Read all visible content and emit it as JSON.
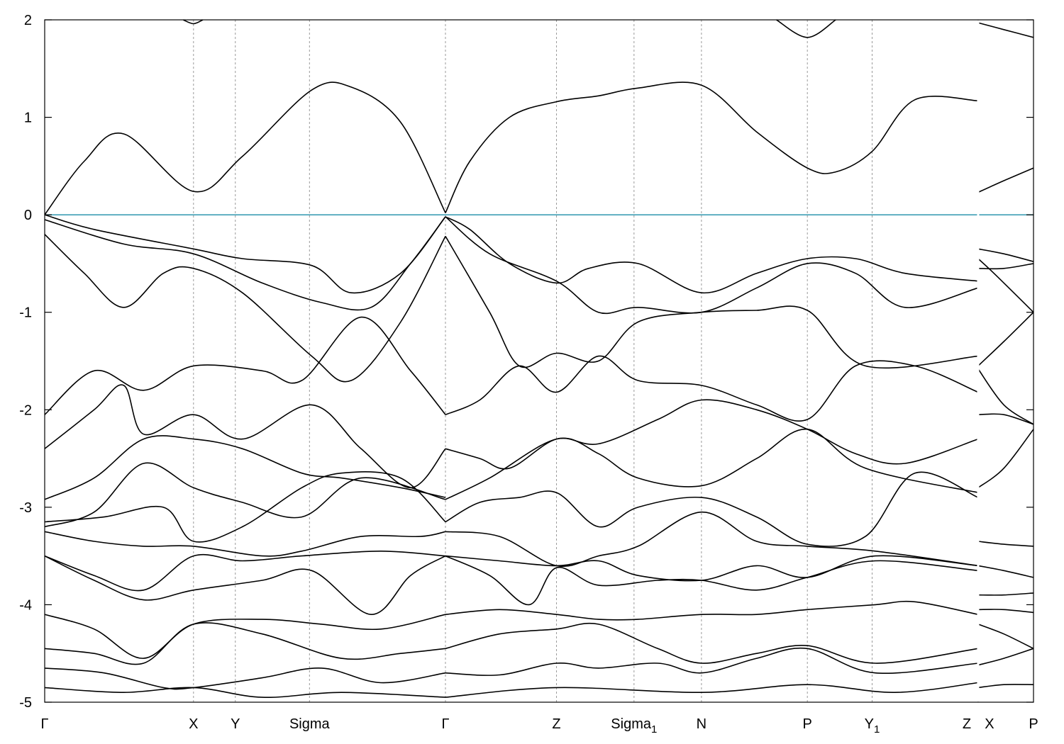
{
  "chart_data": {
    "type": "line",
    "title": "",
    "xlabel": "",
    "ylabel": "",
    "ylim": [
      -5,
      2
    ],
    "xlim": [
      0,
      1
    ],
    "yticks": [
      -5,
      -4,
      -3,
      -2,
      -1,
      0,
      1,
      2
    ],
    "grid": "vertical dashed lines at high-symmetry points",
    "legend": "none",
    "colors": {
      "bands": "#000000",
      "fermi_level": "#3f9fb5",
      "gridlines": "#9a9a9a"
    },
    "fermi_level": 0,
    "break_at": 0.944,
    "high_symmetry_points": [
      {
        "label": "Γ",
        "sub": "",
        "x": 0.0
      },
      {
        "label": "X",
        "sub": "",
        "x": 0.1505
      },
      {
        "label": "Y",
        "sub": "",
        "x": 0.1928
      },
      {
        "label": "Sigma",
        "sub": "",
        "x": 0.2678
      },
      {
        "label": "Γ",
        "sub": "",
        "x": 0.4053
      },
      {
        "label": "Z",
        "sub": "",
        "x": 0.5176
      },
      {
        "label": "Sigma",
        "sub": "1",
        "x": 0.596
      },
      {
        "label": "N",
        "sub": "",
        "x": 0.6642
      },
      {
        "label": "P",
        "sub": "",
        "x": 0.7713
      },
      {
        "label": "Y",
        "sub": "1",
        "x": 0.8368
      },
      {
        "label": "Z",
        "sub": "",
        "x": 0.944
      },
      {
        "label": "X",
        "sub": "",
        "x": 0.944
      },
      {
        "label": "P",
        "sub": "",
        "x": 1.0
      }
    ],
    "series": [
      {
        "x": [
          0,
          0.04,
          0.08,
          0.1505,
          0.2,
          0.27,
          0.31,
          0.36,
          0.4053
        ],
        "values": [
          0,
          0.55,
          0.83,
          0.24,
          0.6,
          1.28,
          1.31,
          0.95,
          0.02
        ]
      },
      {
        "x": [
          0.4053,
          0.43,
          0.47,
          0.5176,
          0.56,
          0.6,
          0.6642,
          0.72,
          0.7713,
          0.8,
          0.8368,
          0.88,
          0.944
        ],
        "values": [
          0.02,
          0.55,
          1.0,
          1.16,
          1.22,
          1.3,
          1.33,
          0.85,
          0.48,
          0.44,
          0.65,
          1.18,
          1.17
        ]
      },
      {
        "x": [
          0.944,
          0.97,
          1.0
        ],
        "values": [
          0.23,
          0.35,
          0.48
        ]
      },
      {
        "x": [
          0,
          0.05,
          0.1505,
          0.2,
          0.27,
          0.31,
          0.36,
          0.4053
        ],
        "values": [
          0,
          -0.15,
          -0.35,
          -0.45,
          -0.52,
          -0.8,
          -0.6,
          -0.02
        ]
      },
      {
        "x": [
          0,
          0.08,
          0.1505,
          0.22,
          0.28,
          0.33,
          0.37,
          0.4053
        ],
        "values": [
          -0.05,
          -0.3,
          -0.4,
          -0.7,
          -0.9,
          -0.95,
          -0.5,
          -0.02
        ]
      },
      {
        "x": [
          0,
          0.04,
          0.08,
          0.12,
          0.1505,
          0.2,
          0.27,
          0.31,
          0.36,
          0.4053
        ],
        "values": [
          -0.2,
          -0.6,
          -0.95,
          -0.6,
          -0.55,
          -0.8,
          -1.45,
          -1.7,
          -1.1,
          -0.22
        ]
      },
      {
        "x": [
          0.4053,
          0.43,
          0.47,
          0.5176,
          0.55,
          0.6,
          0.6642,
          0.72,
          0.7713,
          0.82,
          0.87,
          0.944
        ],
        "values": [
          -0.02,
          -0.15,
          -0.5,
          -0.7,
          -0.55,
          -0.5,
          -0.8,
          -0.6,
          -0.45,
          -0.45,
          -0.6,
          -0.68
        ]
      },
      {
        "x": [
          0.4053,
          0.45,
          0.5176,
          0.56,
          0.6,
          0.6642,
          0.72,
          0.7713,
          0.82,
          0.87,
          0.944
        ],
        "values": [
          -0.02,
          -0.4,
          -0.68,
          -1.0,
          -0.95,
          -1.0,
          -0.75,
          -0.5,
          -0.6,
          -0.95,
          -0.75
        ]
      },
      {
        "x": [
          0.4053,
          0.45,
          0.48,
          0.5176,
          0.56,
          0.6,
          0.6642,
          0.72,
          0.7713,
          0.83,
          0.944
        ],
        "values": [
          -0.22,
          -1.0,
          -1.55,
          -1.42,
          -1.5,
          -1.1,
          -1.0,
          -0.98,
          -0.98,
          -1.55,
          -1.45
        ]
      },
      {
        "x": [
          0,
          0.05,
          0.1,
          0.1505,
          0.22,
          0.26,
          0.32,
          0.37,
          0.4053
        ],
        "values": [
          -2.05,
          -1.6,
          -1.8,
          -1.55,
          -1.6,
          -1.7,
          -1.05,
          -1.6,
          -2.05
        ]
      },
      {
        "x": [
          0.4053,
          0.44,
          0.48,
          0.5176,
          0.56,
          0.6,
          0.6642,
          0.72,
          0.7713,
          0.82,
          0.88,
          0.944
        ],
        "values": [
          -2.05,
          -1.9,
          -1.55,
          -1.82,
          -1.45,
          -1.7,
          -1.75,
          -1.95,
          -2.1,
          -1.55,
          -1.55,
          -1.82
        ]
      },
      {
        "x": [
          0,
          0.05,
          0.08,
          0.1,
          0.1505,
          0.2,
          0.27,
          0.32,
          0.37,
          0.4053
        ],
        "values": [
          -2.4,
          -2.0,
          -1.75,
          -2.25,
          -2.05,
          -2.3,
          -1.95,
          -2.4,
          -2.8,
          -2.4
        ]
      },
      {
        "x": [
          0,
          0.05,
          0.1,
          0.1505,
          0.2,
          0.26,
          0.3,
          0.36,
          0.4053
        ],
        "values": [
          -2.92,
          -2.7,
          -2.3,
          -2.3,
          -2.4,
          -2.65,
          -2.7,
          -2.8,
          -2.9
        ]
      },
      {
        "x": [
          0.4053,
          0.44,
          0.47,
          0.5176,
          0.56,
          0.62,
          0.6642,
          0.72,
          0.7713,
          0.82,
          0.87,
          0.944
        ],
        "values": [
          -2.4,
          -2.5,
          -2.6,
          -2.3,
          -2.35,
          -2.1,
          -1.9,
          -2.0,
          -2.2,
          -2.45,
          -2.55,
          -2.3
        ]
      },
      {
        "x": [
          0.4053,
          0.45,
          0.5176,
          0.56,
          0.6,
          0.6642,
          0.72,
          0.7713,
          0.83,
          0.944
        ],
        "values": [
          -2.92,
          -2.7,
          -2.3,
          -2.45,
          -2.7,
          -2.78,
          -2.5,
          -2.2,
          -2.6,
          -2.85
        ]
      },
      {
        "x": [
          0,
          0.05,
          0.1,
          0.1505,
          0.2,
          0.26,
          0.32,
          0.4053
        ],
        "values": [
          -3.2,
          -3.05,
          -2.55,
          -2.8,
          -2.95,
          -3.1,
          -2.7,
          -2.92
        ]
      },
      {
        "x": [
          0,
          0.06,
          0.12,
          0.1505,
          0.2,
          0.26,
          0.3,
          0.36,
          0.4053
        ],
        "values": [
          -3.15,
          -3.1,
          -3.0,
          -3.35,
          -3.2,
          -2.8,
          -2.65,
          -2.7,
          -3.15
        ]
      },
      {
        "x": [
          0.4053,
          0.44,
          0.48,
          0.5176,
          0.56,
          0.6,
          0.6642,
          0.72,
          0.7713,
          0.83,
          0.88,
          0.944
        ],
        "values": [
          -3.15,
          -2.95,
          -2.9,
          -2.85,
          -3.2,
          -3.0,
          -2.9,
          -3.1,
          -3.38,
          -3.3,
          -2.65,
          -2.9
        ]
      },
      {
        "x": [
          0,
          0.05,
          0.1,
          0.1505,
          0.22,
          0.26,
          0.32,
          0.38,
          0.4053
        ],
        "values": [
          -3.25,
          -3.35,
          -3.4,
          -3.4,
          -3.5,
          -3.45,
          -3.3,
          -3.3,
          -3.25
        ]
      },
      {
        "x": [
          0.4053,
          0.46,
          0.5176,
          0.56,
          0.6,
          0.6642,
          0.72,
          0.7713,
          0.84,
          0.944
        ],
        "values": [
          -3.25,
          -3.3,
          -3.6,
          -3.5,
          -3.4,
          -3.05,
          -3.35,
          -3.4,
          -3.45,
          -3.6
        ]
      },
      {
        "x": [
          0,
          0.05,
          0.1,
          0.1505,
          0.2,
          0.26,
          0.34,
          0.4053
        ],
        "values": [
          -3.5,
          -3.7,
          -3.85,
          -3.5,
          -3.55,
          -3.5,
          -3.45,
          -3.5
        ]
      },
      {
        "x": [
          0.4053,
          0.46,
          0.5176,
          0.56,
          0.6,
          0.6642,
          0.72,
          0.7713,
          0.84,
          0.944
        ],
        "values": [
          -3.5,
          -3.55,
          -3.6,
          -3.55,
          -3.7,
          -3.75,
          -3.6,
          -3.72,
          -3.5,
          -3.6
        ]
      },
      {
        "x": [
          0,
          0.05,
          0.1,
          0.1505,
          0.22,
          0.27,
          0.33,
          0.37,
          0.4053
        ],
        "values": [
          -3.5,
          -3.75,
          -3.95,
          -3.85,
          -3.75,
          -3.65,
          -4.1,
          -3.7,
          -3.5
        ]
      },
      {
        "x": [
          0.4053,
          0.45,
          0.49,
          0.5176,
          0.56,
          0.62,
          0.6642,
          0.72,
          0.7713,
          0.84,
          0.944
        ],
        "values": [
          -3.5,
          -3.7,
          -4.0,
          -3.62,
          -3.8,
          -3.75,
          -3.75,
          -3.85,
          -3.72,
          -3.55,
          -3.65
        ]
      },
      {
        "x": [
          0,
          0.05,
          0.1,
          0.1505,
          0.22,
          0.28,
          0.34,
          0.4053
        ],
        "values": [
          -4.1,
          -4.25,
          -4.55,
          -4.2,
          -4.15,
          -4.2,
          -4.25,
          -4.1
        ]
      },
      {
        "x": [
          0.4053,
          0.46,
          0.5176,
          0.56,
          0.6,
          0.6642,
          0.72,
          0.7713,
          0.84,
          0.88,
          0.944
        ],
        "values": [
          -4.1,
          -4.05,
          -4.1,
          -4.15,
          -4.15,
          -4.1,
          -4.1,
          -4.05,
          -4.0,
          -3.97,
          -4.1
        ]
      },
      {
        "x": [
          0,
          0.05,
          0.1,
          0.1505,
          0.22,
          0.3,
          0.36,
          0.4053
        ],
        "values": [
          -4.45,
          -4.5,
          -4.6,
          -4.2,
          -4.3,
          -4.55,
          -4.5,
          -4.45
        ]
      },
      {
        "x": [
          0.4053,
          0.46,
          0.5176,
          0.56,
          0.62,
          0.6642,
          0.72,
          0.7713,
          0.84,
          0.944
        ],
        "values": [
          -4.45,
          -4.3,
          -4.25,
          -4.2,
          -4.45,
          -4.6,
          -4.5,
          -4.42,
          -4.6,
          -4.45
        ]
      },
      {
        "x": [
          0,
          0.06,
          0.12,
          0.1505,
          0.22,
          0.28,
          0.34,
          0.4053
        ],
        "values": [
          -4.65,
          -4.7,
          -4.85,
          -4.85,
          -4.75,
          -4.65,
          -4.8,
          -4.7
        ]
      },
      {
        "x": [
          0.4053,
          0.46,
          0.5176,
          0.56,
          0.62,
          0.6642,
          0.72,
          0.7713,
          0.84,
          0.944
        ],
        "values": [
          -4.7,
          -4.72,
          -4.6,
          -4.65,
          -4.6,
          -4.7,
          -4.55,
          -4.45,
          -4.7,
          -4.6
        ]
      },
      {
        "x": [
          0,
          0.08,
          0.1505,
          0.22,
          0.3,
          0.4053
        ],
        "values": [
          -4.85,
          -4.9,
          -4.85,
          -4.95,
          -4.9,
          -4.95
        ]
      },
      {
        "x": [
          0.4053,
          0.5176,
          0.6642,
          0.7713,
          0.86,
          0.944
        ],
        "values": [
          -4.95,
          -4.85,
          -4.9,
          -4.82,
          -4.9,
          -4.8
        ]
      },
      {
        "x": [
          0.944,
          0.97,
          1.0
        ],
        "values": [
          -0.35,
          -0.4,
          -0.48
        ]
      },
      {
        "x": [
          0.944,
          0.97,
          1.0
        ],
        "values": [
          -0.55,
          -0.55,
          -0.5
        ]
      },
      {
        "x": [
          0.944,
          0.96,
          1.0
        ],
        "values": [
          -0.45,
          -0.6,
          -1.0
        ]
      },
      {
        "x": [
          0.944,
          0.97,
          1.0
        ],
        "values": [
          -1.55,
          -1.3,
          -1.0
        ]
      },
      {
        "x": [
          0.944,
          0.97,
          1.0
        ],
        "values": [
          -1.58,
          -1.95,
          -2.15
        ]
      },
      {
        "x": [
          0.944,
          0.97,
          1.0
        ],
        "values": [
          -2.05,
          -2.05,
          -2.15
        ]
      },
      {
        "x": [
          0.944,
          0.97,
          1.0
        ],
        "values": [
          -2.8,
          -2.6,
          -2.2
        ]
      },
      {
        "x": [
          0.944,
          0.97,
          1.0
        ],
        "values": [
          -3.35,
          -3.38,
          -3.4
        ]
      },
      {
        "x": [
          0.944,
          0.97,
          1.0
        ],
        "values": [
          -3.6,
          -3.65,
          -3.72
        ]
      },
      {
        "x": [
          0.944,
          0.97,
          1.0
        ],
        "values": [
          -3.9,
          -3.9,
          -3.88
        ]
      },
      {
        "x": [
          0.944,
          0.97,
          1.0
        ],
        "values": [
          -4.05,
          -4.05,
          -4.08
        ]
      },
      {
        "x": [
          0.944,
          0.97,
          1.0
        ],
        "values": [
          -4.2,
          -4.3,
          -4.45
        ]
      },
      {
        "x": [
          0.944,
          0.97,
          1.0
        ],
        "values": [
          -4.62,
          -4.55,
          -4.45
        ]
      },
      {
        "x": [
          0.944,
          0.97,
          1.0
        ],
        "values": [
          -4.85,
          -4.82,
          -4.82
        ]
      },
      {
        "x": [
          0.944,
          0.97,
          1.0
        ],
        "values": [
          1.97,
          1.9,
          1.82
        ]
      },
      {
        "x": [
          0.14,
          0.1505,
          0.16
        ],
        "values": [
          2.0,
          1.96,
          2.0
        ]
      },
      {
        "x": [
          0.74,
          0.7713,
          0.8
        ],
        "values": [
          2.0,
          1.82,
          2.0
        ]
      }
    ]
  }
}
